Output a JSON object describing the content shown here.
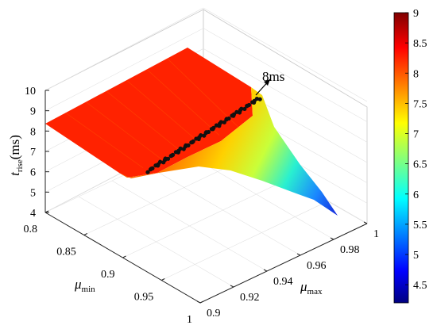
{
  "chart_data": {
    "type": "surface",
    "title": "",
    "z_axis": {
      "label_main": "t",
      "label_sub": "rise",
      "label_unit": "(ms)",
      "range": [
        4,
        10
      ],
      "ticks": [
        "4",
        "5",
        "6",
        "7",
        "8",
        "9",
        "10"
      ]
    },
    "x_axis": {
      "label_main": "μ",
      "label_sub": "min",
      "range": [
        0.8,
        1.0
      ],
      "ticks": [
        "0.8",
        "0.85",
        "0.9",
        "0.95",
        "1"
      ]
    },
    "y_axis": {
      "label_main": "μ",
      "label_sub": "max",
      "range": [
        0.9,
        1.0
      ],
      "ticks": [
        "0.9",
        "0.92",
        "0.94",
        "0.96",
        "0.98",
        "1"
      ]
    },
    "colorbar": {
      "range": [
        4.2,
        9
      ],
      "ticks": [
        "4.5",
        "5",
        "5.5",
        "6",
        "6.5",
        "7",
        "7.5",
        "8",
        "8.5",
        "9"
      ],
      "colormap": "jet"
    },
    "annotation": {
      "text": "8ms",
      "contour_level": 8
    },
    "surface_samples": [
      {
        "mu_min": 0.8,
        "mu_max": 0.9,
        "t_rise": 8.5
      },
      {
        "mu_min": 0.8,
        "mu_max": 1.0,
        "t_rise": 9.0
      },
      {
        "mu_min": 1.0,
        "mu_max": 0.9,
        "t_rise": 6.3
      },
      {
        "mu_min": 1.0,
        "mu_max": 1.0,
        "t_rise": 4.3
      }
    ],
    "grid": true
  }
}
